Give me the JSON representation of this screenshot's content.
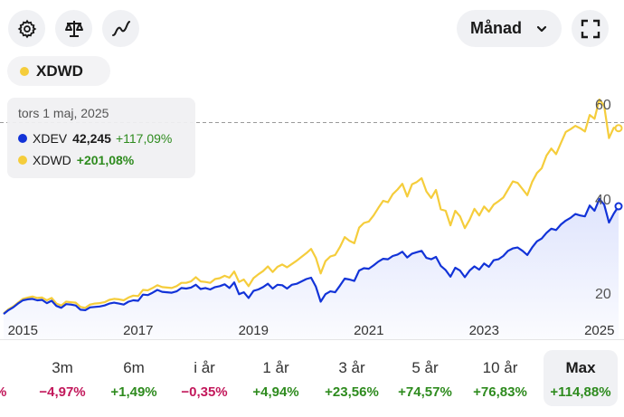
{
  "toolbar": {
    "settings_icon": "gear-icon",
    "compare_icon": "scale-icon",
    "chart_type_icon": "line-wave-icon",
    "period": "Månad",
    "expand_icon": "expand-corners-icon"
  },
  "instrument_chip": {
    "label": "XDWD",
    "color": "#f5cd3c"
  },
  "tooltip": {
    "date": "tors 1 maj, 2025",
    "rows": [
      {
        "name": "XDEV",
        "value": "42,245",
        "change": "+117,09%",
        "color": "#1233d8"
      },
      {
        "name": "XDWD",
        "value": "",
        "change": "+201,08%",
        "color": "#f5cd3c"
      }
    ]
  },
  "chart_data": {
    "type": "line",
    "x": [
      "2014-09",
      "2014-10",
      "2014-11",
      "2014-12",
      "2015-01",
      "2015-02",
      "2015-03",
      "2015-04",
      "2015-05",
      "2015-06",
      "2015-07",
      "2015-08",
      "2015-09",
      "2015-10",
      "2015-11",
      "2015-12",
      "2016-01",
      "2016-02",
      "2016-03",
      "2016-04",
      "2016-05",
      "2016-06",
      "2016-07",
      "2016-08",
      "2016-09",
      "2016-10",
      "2016-11",
      "2016-12",
      "2017-01",
      "2017-02",
      "2017-03",
      "2017-04",
      "2017-05",
      "2017-06",
      "2017-07",
      "2017-08",
      "2017-09",
      "2017-10",
      "2017-11",
      "2017-12",
      "2018-01",
      "2018-02",
      "2018-03",
      "2018-04",
      "2018-05",
      "2018-06",
      "2018-07",
      "2018-08",
      "2018-09",
      "2018-10",
      "2018-11",
      "2018-12",
      "2019-01",
      "2019-02",
      "2019-03",
      "2019-04",
      "2019-05",
      "2019-06",
      "2019-07",
      "2019-08",
      "2019-09",
      "2019-10",
      "2019-11",
      "2019-12",
      "2020-01",
      "2020-02",
      "2020-03",
      "2020-04",
      "2020-05",
      "2020-06",
      "2020-07",
      "2020-08",
      "2020-09",
      "2020-10",
      "2020-11",
      "2020-12",
      "2021-01",
      "2021-02",
      "2021-03",
      "2021-04",
      "2021-05",
      "2021-06",
      "2021-07",
      "2021-08",
      "2021-09",
      "2021-10",
      "2021-11",
      "2021-12",
      "2022-01",
      "2022-02",
      "2022-03",
      "2022-04",
      "2022-05",
      "2022-06",
      "2022-07",
      "2022-08",
      "2022-09",
      "2022-10",
      "2022-11",
      "2022-12",
      "2023-01",
      "2023-02",
      "2023-03",
      "2023-04",
      "2023-05",
      "2023-06",
      "2023-07",
      "2023-08",
      "2023-09",
      "2023-10",
      "2023-11",
      "2023-12",
      "2024-01",
      "2024-02",
      "2024-03",
      "2024-04",
      "2024-05",
      "2024-06",
      "2024-07",
      "2024-08",
      "2024-09",
      "2024-10",
      "2024-11",
      "2024-12",
      "2025-01",
      "2025-02",
      "2025-03",
      "2025-04",
      "2025-05"
    ],
    "series": [
      {
        "name": "XDEV",
        "color": "#1233d8",
        "values": [
          19.4,
          20.2,
          20.8,
          21.6,
          22.3,
          22.5,
          22.6,
          22.3,
          22.4,
          21.7,
          22.2,
          21.1,
          20.7,
          21.5,
          21.4,
          21.2,
          20.3,
          20.2,
          20.8,
          20.9,
          21.0,
          21.2,
          21.6,
          21.8,
          21.6,
          21.4,
          22.0,
          22.3,
          22.2,
          23.5,
          23.4,
          23.9,
          24.5,
          24.1,
          24.0,
          23.9,
          24.2,
          24.9,
          24.8,
          25.0,
          25.6,
          24.7,
          24.9,
          24.6,
          25.1,
          25.3,
          25.7,
          24.9,
          26.1,
          23.6,
          24.0,
          22.8,
          24.3,
          24.6,
          25.1,
          25.8,
          24.8,
          25.6,
          25.5,
          24.8,
          25.6,
          25.8,
          26.3,
          26.8,
          27.1,
          25.2,
          22.0,
          23.6,
          24.2,
          24.0,
          25.4,
          26.9,
          26.7,
          26.4,
          28.6,
          29.1,
          29.0,
          29.7,
          30.5,
          31.1,
          31.0,
          31.7,
          32.0,
          32.6,
          31.4,
          32.2,
          32.5,
          32.8,
          31.3,
          31.0,
          31.5,
          29.6,
          28.7,
          27.3,
          29.2,
          28.6,
          27.2,
          28.6,
          29.5,
          28.8,
          30.1,
          29.4,
          30.8,
          31.0,
          31.7,
          32.8,
          33.3,
          33.5,
          32.8,
          31.9,
          33.5,
          34.8,
          35.4,
          36.6,
          37.5,
          37.2,
          38.4,
          39.2,
          39.8,
          40.6,
          40.3,
          40.1,
          42.4,
          41.3,
          43.8,
          42.6,
          38.8,
          40.7,
          42.245
        ]
      },
      {
        "name": "XDWD",
        "color": "#f5cd3c",
        "values": [
          19.5,
          20.4,
          21.0,
          21.8,
          22.6,
          22.9,
          23.1,
          22.8,
          22.9,
          22.3,
          22.8,
          21.6,
          21.2,
          22.0,
          21.9,
          21.8,
          20.9,
          20.7,
          21.4,
          21.6,
          21.7,
          21.9,
          22.4,
          22.6,
          22.5,
          22.3,
          22.9,
          23.3,
          23.2,
          24.5,
          24.4,
          24.9,
          25.5,
          25.1,
          25.0,
          24.9,
          25.3,
          26.0,
          26.0,
          26.3,
          27.2,
          26.3,
          26.2,
          26.0,
          26.8,
          27.0,
          27.5,
          27.1,
          28.4,
          26.2,
          26.7,
          25.3,
          27.0,
          27.8,
          28.5,
          29.5,
          28.3,
          29.4,
          29.9,
          29.3,
          30.0,
          30.7,
          31.5,
          32.3,
          33.2,
          31.3,
          28.0,
          30.6,
          31.6,
          31.9,
          33.6,
          35.7,
          34.9,
          34.4,
          37.7,
          38.7,
          39.0,
          40.3,
          41.9,
          43.4,
          43.1,
          44.8,
          45.8,
          47.0,
          44.3,
          46.9,
          47.4,
          48.2,
          45.4,
          44.0,
          45.7,
          41.6,
          41.3,
          38.2,
          41.3,
          40.1,
          37.6,
          39.4,
          41.7,
          40.3,
          42.2,
          41.1,
          42.6,
          43.3,
          44.1,
          45.8,
          47.5,
          47.2,
          45.9,
          44.6,
          47.4,
          49.3,
          50.3,
          53.0,
          54.5,
          53.3,
          55.7,
          58.0,
          58.6,
          59.3,
          58.8,
          58.1,
          61.6,
          60.8,
          64.9,
          63.5,
          56.7,
          58.9,
          58.8
        ]
      }
    ],
    "x_ticks": [
      "2015",
      "2017",
      "2019",
      "2021",
      "2023",
      "2025"
    ],
    "y_ticks": [
      20,
      40,
      60
    ],
    "ylim": [
      17.5,
      67
    ],
    "reference_line": 60,
    "grid": false,
    "legend": "none"
  },
  "ranges": [
    {
      "label": "",
      "change": "%",
      "tone": "neg"
    },
    {
      "label": "3m",
      "change": "−4,97%",
      "tone": "neg"
    },
    {
      "label": "6m",
      "change": "+1,49%",
      "tone": "pos"
    },
    {
      "label": "i år",
      "change": "−0,35%",
      "tone": "neg"
    },
    {
      "label": "1 år",
      "change": "+4,94%",
      "tone": "pos"
    },
    {
      "label": "3 år",
      "change": "+23,56%",
      "tone": "pos"
    },
    {
      "label": "5 år",
      "change": "+74,57%",
      "tone": "pos"
    },
    {
      "label": "10 år",
      "change": "+76,83%",
      "tone": "pos"
    },
    {
      "label": "Max",
      "change": "+114,88%",
      "tone": "pos",
      "active": true
    }
  ]
}
